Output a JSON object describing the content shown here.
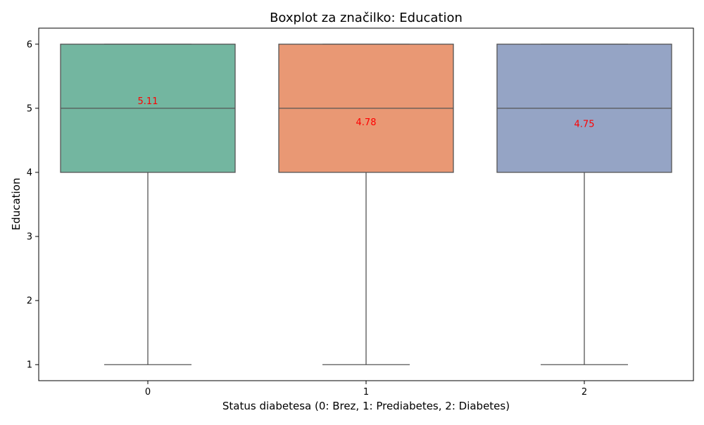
{
  "chart_data": {
    "type": "box",
    "title": "Boxplot za značilko: Education",
    "xlabel": "Status diabetesa (0: Brez, 1: Prediabetes, 2: Diabetes)",
    "ylabel": "Education",
    "ylim": [
      0.75,
      6.25
    ],
    "yticks": [
      1,
      2,
      3,
      4,
      5,
      6
    ],
    "grid": false,
    "categories": [
      "0",
      "1",
      "2"
    ],
    "boxes": [
      {
        "category": "0",
        "whisker_low": 1,
        "q1": 4,
        "median": 5,
        "q3": 6,
        "whisker_high": 6,
        "mean": 5.11,
        "mean_label": "5.11",
        "color": "#73b6a0"
      },
      {
        "category": "1",
        "whisker_low": 1,
        "q1": 4,
        "median": 5,
        "q3": 6,
        "whisker_high": 6,
        "mean": 4.78,
        "mean_label": "4.78",
        "color": "#e99874"
      },
      {
        "category": "2",
        "whisker_low": 1,
        "q1": 4,
        "median": 5,
        "q3": 6,
        "whisker_high": 6,
        "mean": 4.75,
        "mean_label": "4.75",
        "color": "#95a4c5"
      }
    ],
    "mean_label_color": "#ff0000",
    "line_color": "#555555"
  }
}
